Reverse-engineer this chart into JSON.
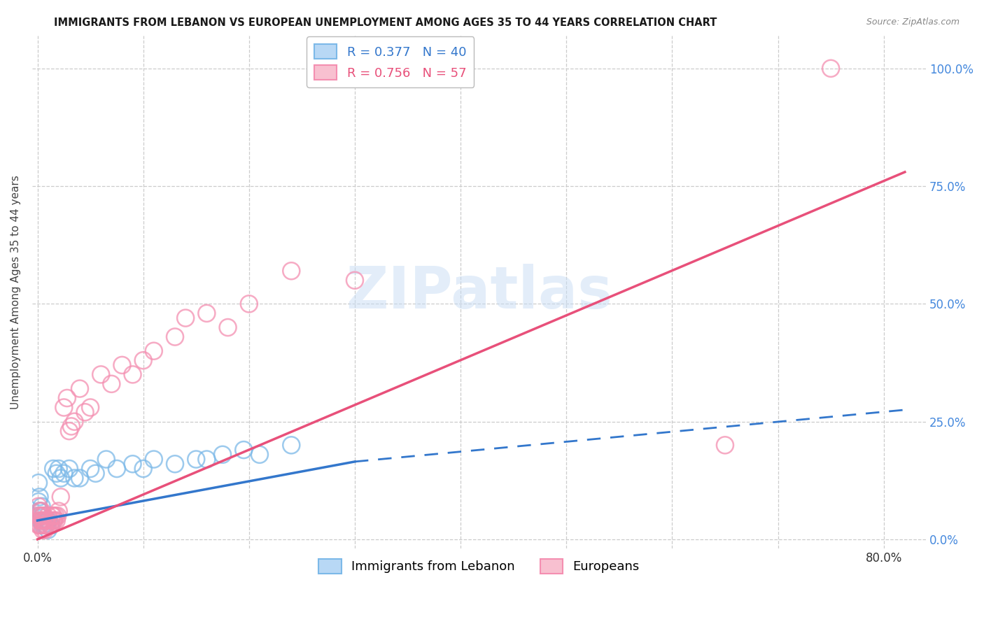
{
  "title": "IMMIGRANTS FROM LEBANON VS EUROPEAN UNEMPLOYMENT AMONG AGES 35 TO 44 YEARS CORRELATION CHART",
  "source": "Source: ZipAtlas.com",
  "ylabel": "Unemployment Among Ages 35 to 44 years",
  "x_ticks": [
    0.0,
    0.1,
    0.2,
    0.3,
    0.4,
    0.5,
    0.6,
    0.7,
    0.8
  ],
  "x_tick_labels": [
    "0.0%",
    "",
    "",
    "",
    "",
    "",
    "",
    "",
    "80.0%"
  ],
  "y_ticks": [
    0.0,
    0.25,
    0.5,
    0.75,
    1.0
  ],
  "y_tick_labels": [
    "0.0%",
    "25.0%",
    "50.0%",
    "75.0%",
    "100.0%"
  ],
  "xlim": [
    -0.005,
    0.84
  ],
  "ylim": [
    -0.02,
    1.07
  ],
  "watermark_text": "ZIPatlas",
  "blue_scatter_x": [
    0.001,
    0.001,
    0.001,
    0.002,
    0.002,
    0.003,
    0.003,
    0.004,
    0.005,
    0.005,
    0.006,
    0.007,
    0.008,
    0.009,
    0.01,
    0.01,
    0.012,
    0.013,
    0.015,
    0.018,
    0.02,
    0.022,
    0.025,
    0.03,
    0.035,
    0.04,
    0.05,
    0.055,
    0.065,
    0.075,
    0.09,
    0.1,
    0.11,
    0.13,
    0.15,
    0.16,
    0.175,
    0.195,
    0.21,
    0.24
  ],
  "blue_scatter_y": [
    0.12,
    0.08,
    0.05,
    0.09,
    0.06,
    0.06,
    0.04,
    0.07,
    0.05,
    0.03,
    0.04,
    0.03,
    0.03,
    0.04,
    0.04,
    0.02,
    0.03,
    0.03,
    0.15,
    0.14,
    0.15,
    0.13,
    0.14,
    0.15,
    0.13,
    0.13,
    0.15,
    0.14,
    0.17,
    0.15,
    0.16,
    0.15,
    0.17,
    0.16,
    0.17,
    0.17,
    0.18,
    0.19,
    0.18,
    0.2
  ],
  "pink_scatter_x": [
    0.001,
    0.001,
    0.001,
    0.002,
    0.002,
    0.002,
    0.003,
    0.003,
    0.004,
    0.004,
    0.005,
    0.005,
    0.005,
    0.006,
    0.006,
    0.007,
    0.007,
    0.008,
    0.008,
    0.009,
    0.01,
    0.01,
    0.011,
    0.012,
    0.013,
    0.014,
    0.015,
    0.015,
    0.016,
    0.017,
    0.018,
    0.019,
    0.02,
    0.022,
    0.025,
    0.028,
    0.03,
    0.032,
    0.035,
    0.04,
    0.045,
    0.05,
    0.06,
    0.07,
    0.08,
    0.09,
    0.1,
    0.11,
    0.13,
    0.14,
    0.16,
    0.18,
    0.2,
    0.24,
    0.3,
    0.65,
    0.75
  ],
  "pink_scatter_y": [
    0.07,
    0.05,
    0.03,
    0.06,
    0.04,
    0.03,
    0.05,
    0.03,
    0.06,
    0.04,
    0.05,
    0.04,
    0.02,
    0.05,
    0.03,
    0.04,
    0.02,
    0.04,
    0.03,
    0.04,
    0.05,
    0.03,
    0.04,
    0.03,
    0.04,
    0.05,
    0.04,
    0.05,
    0.04,
    0.05,
    0.04,
    0.05,
    0.06,
    0.09,
    0.28,
    0.3,
    0.23,
    0.24,
    0.25,
    0.32,
    0.27,
    0.28,
    0.35,
    0.33,
    0.37,
    0.35,
    0.38,
    0.4,
    0.43,
    0.47,
    0.48,
    0.45,
    0.5,
    0.57,
    0.55,
    0.2,
    1.0
  ],
  "blue_solid_line": {
    "x": [
      0.0,
      0.3
    ],
    "y": [
      0.04,
      0.165
    ]
  },
  "blue_dashed_line": {
    "x": [
      0.3,
      0.82
    ],
    "y": [
      0.165,
      0.275
    ]
  },
  "pink_solid_line": {
    "x": [
      0.0,
      0.82
    ],
    "y": [
      0.0,
      0.78
    ]
  },
  "blue_color": "#7cb9e8",
  "pink_color": "#f48fb1",
  "blue_line_color": "#3377cc",
  "pink_line_color": "#e8507a",
  "background_color": "#ffffff",
  "grid_color": "#cccccc"
}
